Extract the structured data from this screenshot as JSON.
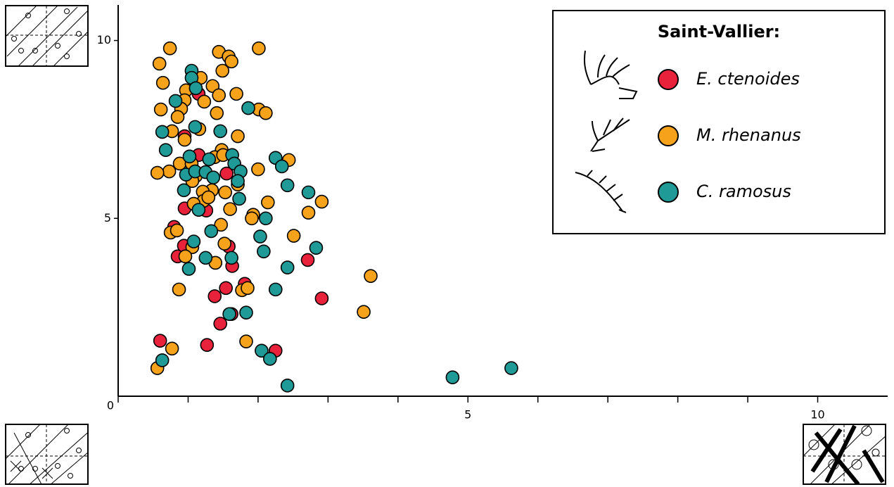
{
  "chart_data": {
    "type": "scatter",
    "xlim": [
      0,
      11
    ],
    "ylim": [
      0,
      11
    ],
    "xticks": [
      0,
      5,
      10
    ],
    "yticks": [
      5,
      10
    ],
    "xminor_ticks": [
      1,
      2,
      3,
      4,
      6,
      7,
      8,
      9
    ],
    "legend_title": "Saint-Vallier:",
    "legend": "upper right",
    "series": [
      {
        "name": "E. ctenoides",
        "color": "#e8223a",
        "x": [
          1.15,
          0.95,
          1.15,
          1.55,
          0.95,
          1.26,
          0.8,
          0.85,
          0.94,
          1.58,
          1.63,
          2.71,
          1.81,
          1.54,
          1.38,
          2.91,
          1.46,
          1.62,
          0.6,
          1.27,
          2.25
        ],
        "values": [
          8.5,
          7.31,
          6.78,
          6.26,
          5.28,
          5.22,
          4.76,
          3.93,
          4.23,
          4.21,
          3.66,
          3.83,
          3.16,
          3.04,
          2.81,
          2.75,
          2.04,
          2.31,
          1.56,
          1.44,
          1.28
        ]
      },
      {
        "name": "M. rhenanus",
        "color": "#f7a21b",
        "x": [
          0.74,
          1.44,
          2.01,
          1.58,
          1.62,
          0.59,
          1.49,
          0.64,
          1.18,
          1.35,
          0.97,
          1.44,
          1.69,
          1.23,
          0.95,
          0.9,
          0.61,
          2.01,
          2.11,
          1.41,
          0.85,
          1.16,
          0.77,
          1.71,
          0.95,
          1.48,
          1.38,
          1.5,
          0.88,
          1.05,
          0.73,
          0.56,
          2.0,
          1.11,
          1.71,
          1.06,
          1.34,
          1.21,
          1.53,
          2.44,
          1.22,
          1.29,
          1.08,
          2.14,
          2.91,
          1.6,
          2.72,
          1.93,
          1.91,
          1.47,
          0.75,
          0.84,
          2.51,
          1.52,
          1.06,
          0.96,
          1.39,
          3.61,
          0.87,
          1.77,
          1.85,
          3.51,
          1.83,
          0.77,
          0.56
        ],
        "values": [
          9.78,
          9.68,
          9.78,
          9.55,
          9.41,
          9.35,
          9.15,
          8.81,
          8.95,
          8.72,
          8.6,
          8.46,
          8.5,
          8.28,
          8.32,
          8.08,
          8.06,
          8.06,
          7.96,
          7.96,
          7.85,
          7.51,
          7.45,
          7.31,
          7.21,
          6.92,
          6.72,
          6.78,
          6.54,
          6.54,
          6.32,
          6.28,
          6.38,
          6.19,
          5.95,
          6.05,
          5.79,
          5.75,
          5.73,
          6.64,
          5.49,
          5.59,
          5.41,
          5.45,
          5.47,
          5.26,
          5.16,
          5.1,
          5.0,
          4.82,
          4.6,
          4.66,
          4.51,
          4.29,
          4.19,
          3.93,
          3.75,
          3.38,
          3.0,
          2.98,
          3.04,
          2.37,
          1.54,
          1.34,
          0.79
        ]
      },
      {
        "name": "C. ramosus",
        "color": "#1f9a96",
        "x": [
          1.05,
          1.05,
          1.11,
          0.82,
          1.86,
          1.1,
          1.46,
          0.63,
          0.68,
          1.02,
          1.63,
          2.25,
          1.3,
          1.66,
          2.34,
          0.97,
          1.1,
          1.25,
          1.75,
          1.36,
          1.71,
          2.42,
          0.94,
          2.72,
          1.73,
          2.11,
          1.15,
          2.03,
          1.33,
          1.08,
          2.83,
          2.08,
          1.25,
          1.62,
          1.01,
          2.42,
          2.25,
          1.59,
          1.83,
          2.05,
          2.17,
          0.63,
          2.42,
          4.78,
          5.62
        ],
        "values": [
          9.15,
          8.95,
          8.66,
          8.3,
          8.1,
          7.57,
          7.45,
          7.43,
          6.92,
          6.74,
          6.78,
          6.7,
          6.66,
          6.54,
          6.46,
          6.23,
          6.32,
          6.3,
          6.32,
          6.15,
          6.05,
          5.93,
          5.79,
          5.73,
          5.55,
          5.0,
          5.24,
          4.49,
          4.64,
          4.35,
          4.17,
          4.07,
          3.89,
          3.89,
          3.58,
          3.62,
          3.0,
          2.31,
          2.35,
          1.28,
          1.05,
          1.01,
          0.3,
          0.53,
          0.79
        ]
      }
    ]
  }
}
